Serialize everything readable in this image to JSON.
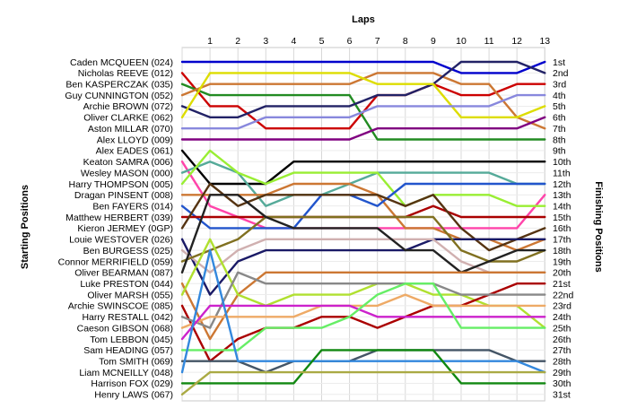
{
  "chart_data": {
    "type": "line",
    "title": "",
    "xlabel": "Laps",
    "ylabel_left": "Starting Positions",
    "ylabel_right": "Finishing Positions",
    "x": [
      1,
      2,
      3,
      4,
      5,
      6,
      7,
      8,
      9,
      10,
      11,
      12,
      13
    ],
    "grid": true,
    "y_reversed": true,
    "ylim": [
      1,
      31
    ],
    "starting_grid": [
      "Caden MCQUEEN (024)",
      "Nicholas REEVE (012)",
      "Ben KASPERCZAK (035)",
      "Guy CUNNINGTON (052)",
      "Archie BROWN (072)",
      "Oliver CLARKE (062)",
      "Aston MILLAR (070)",
      "Alex LLOYD (009)",
      "Alex EADES (061)",
      "Keaton SAMRA (006)",
      "Wesley MASON (000)",
      "Harry THOMPSON (005)",
      "Dragan PINSENT (008)",
      "Ben FAYERS (014)",
      "Matthew HERBERT (039)",
      "Kieron JERMEY (0GP)",
      "Louie WESTOVER (026)",
      "Ben BURGESS (025)",
      "Connor MERRIFIELD (059)",
      "Oliver BEARMAN (087)",
      "Luke PRESTON (044)",
      "Oliver MARSH (055)",
      "Archie SWINSCOE (085)",
      "Harry RESTALL (042)",
      "Caeson GIBSON (068)",
      "Tom LEBBON (045)",
      "Sam HEADING (057)",
      "Tom SMITH (069)",
      "Liam MCNEILLY (048)",
      "Harrison FOX (029)",
      "Henry LAWS (067)"
    ],
    "finishing_labels": [
      "1st",
      "2nd",
      "3rd",
      "4th",
      "5th",
      "6th",
      "7th",
      "8th",
      "9th",
      "10th",
      "11th",
      "12th",
      "13th",
      "14th",
      "15th",
      "16th",
      "17th",
      "18th",
      "19th",
      "20th",
      "21st",
      "22nd",
      "23rd",
      "24th",
      "25th",
      "26th",
      "27th",
      "28th",
      "29th",
      "30th",
      "31st"
    ],
    "series": [
      {
        "start": 1,
        "color": "#0000cc",
        "positions": [
          1,
          1,
          1,
          1,
          1,
          1,
          1,
          1,
          1,
          2,
          2,
          2,
          1
        ]
      },
      {
        "start": 2,
        "color": "#cc0000",
        "positions": [
          5,
          5,
          7,
          7,
          7,
          7,
          4,
          4,
          3,
          4,
          4,
          3,
          3
        ]
      },
      {
        "start": 3,
        "color": "#228b22",
        "positions": [
          4,
          4,
          4,
          4,
          4,
          4,
          8,
          8,
          8,
          8,
          8,
          8,
          8
        ]
      },
      {
        "start": 4,
        "color": "#cc7733",
        "positions": [
          3,
          3,
          3,
          3,
          3,
          3,
          2,
          2,
          2,
          3,
          3,
          6,
          7
        ]
      },
      {
        "start": 5,
        "color": "#222266",
        "positions": [
          6,
          6,
          5,
          5,
          5,
          5,
          4,
          4,
          3,
          1,
          1,
          1,
          2
        ]
      },
      {
        "start": 6,
        "color": "#dddd00",
        "positions": [
          2,
          2,
          2,
          2,
          2,
          2,
          3,
          3,
          3,
          6,
          6,
          6,
          5
        ]
      },
      {
        "start": 7,
        "color": "#8888dd",
        "positions": [
          7,
          7,
          6,
          6,
          6,
          6,
          5,
          5,
          5,
          5,
          5,
          4,
          4
        ]
      },
      {
        "start": 8,
        "color": "#800080",
        "positions": [
          8,
          8,
          8,
          8,
          8,
          8,
          7,
          7,
          7,
          7,
          7,
          7,
          6
        ]
      },
      {
        "start": 9,
        "color": "#000000",
        "positions": [
          12,
          12,
          12,
          10,
          10,
          10,
          10,
          10,
          10,
          10,
          10,
          10,
          10
        ]
      },
      {
        "start": 10,
        "color": "#ff44aa",
        "positions": [
          14,
          15,
          16,
          16,
          16,
          16,
          16,
          16,
          16,
          16,
          16,
          16,
          13
        ]
      },
      {
        "start": 11,
        "color": "#55aa99",
        "positions": [
          10,
          11,
          14,
          13,
          13,
          12,
          11,
          11,
          11,
          11,
          11,
          12,
          12
        ]
      },
      {
        "start": 12,
        "color": "#99ee33",
        "positions": [
          9,
          11,
          12,
          11,
          11,
          11,
          11,
          14,
          13,
          13,
          13,
          14,
          14
        ]
      },
      {
        "start": 13,
        "color": "#cc7733",
        "positions": [
          13,
          13,
          13,
          12,
          12,
          12,
          13,
          16,
          16,
          17,
          17,
          18,
          17
        ]
      },
      {
        "start": 14,
        "color": "#2255cc",
        "positions": [
          16,
          16,
          16,
          16,
          13,
          13,
          14,
          12,
          12,
          12,
          12,
          12,
          12
        ]
      },
      {
        "start": 15,
        "color": "#aa0000",
        "positions": [
          15,
          15,
          15,
          15,
          15,
          15,
          15,
          15,
          14,
          15,
          15,
          15,
          15
        ]
      },
      {
        "start": 16,
        "color": "#553311",
        "positions": [
          12,
          14,
          13,
          13,
          13,
          13,
          13,
          14,
          13,
          16,
          18,
          17,
          16
        ]
      },
      {
        "start": 17,
        "color": "#1a1a66",
        "positions": [
          22,
          19,
          18,
          18,
          18,
          18,
          18,
          18,
          17,
          17,
          17,
          17,
          17
        ]
      },
      {
        "start": 18,
        "color": "#d0b0b0",
        "positions": [
          20,
          18,
          17,
          17,
          17,
          17,
          17,
          17,
          17,
          19,
          20,
          20,
          20
        ]
      },
      {
        "start": 19,
        "color": "#807020",
        "positions": [
          18,
          17,
          15,
          15,
          15,
          15,
          15,
          15,
          15,
          18,
          19,
          19,
          18
        ]
      },
      {
        "start": 20,
        "color": "#222222",
        "positions": [
          13,
          13,
          15,
          16,
          16,
          16,
          16,
          18,
          18,
          20,
          19,
          18,
          18
        ]
      },
      {
        "start": 21,
        "color": "#cc7733",
        "positions": [
          26,
          22,
          20,
          20,
          20,
          20,
          20,
          20,
          20,
          20,
          20,
          20,
          20
        ]
      },
      {
        "start": 22,
        "color": "#b0e030",
        "positions": [
          17,
          22,
          23,
          22,
          22,
          22,
          21,
          21,
          22,
          22,
          23,
          23,
          25
        ]
      },
      {
        "start": 23,
        "color": "#aa0000",
        "positions": [
          28,
          26,
          25,
          25,
          24,
          24,
          25,
          24,
          23,
          23,
          22,
          21,
          21
        ]
      },
      {
        "start": 24,
        "color": "#888888",
        "positions": [
          25,
          20,
          21,
          21,
          21,
          21,
          21,
          21,
          21,
          22,
          22,
          22,
          22
        ]
      },
      {
        "start": 25,
        "color": "#eeaa66",
        "positions": [
          24,
          24,
          24,
          24,
          23,
          23,
          23,
          22,
          23,
          23,
          23,
          23,
          23
        ]
      },
      {
        "start": 26,
        "color": "#cc22cc",
        "positions": [
          23,
          23,
          23,
          23,
          23,
          23,
          24,
          24,
          24,
          24,
          24,
          24,
          24
        ]
      },
      {
        "start": 27,
        "color": "#66ee66",
        "positions": [
          27,
          27,
          25,
          25,
          25,
          24,
          22,
          21,
          21,
          25,
          25,
          25,
          25
        ]
      },
      {
        "start": 28,
        "color": "#445566",
        "positions": [
          28,
          28,
          29,
          28,
          28,
          28,
          27,
          27,
          27,
          27,
          27,
          28,
          28
        ]
      },
      {
        "start": 29,
        "color": "#3388dd",
        "positions": [
          18,
          28,
          28,
          28,
          28,
          28,
          28,
          28,
          28,
          28,
          28,
          28,
          29
        ]
      },
      {
        "start": 30,
        "color": "#118811",
        "positions": [
          30,
          30,
          30,
          30,
          27,
          27,
          27,
          27,
          27,
          30,
          30,
          30,
          30
        ]
      },
      {
        "start": 31,
        "color": "#aaaa44",
        "positions": [
          29,
          29,
          29,
          29,
          29,
          29,
          29,
          29,
          29,
          29,
          29,
          29,
          29
        ]
      }
    ]
  }
}
